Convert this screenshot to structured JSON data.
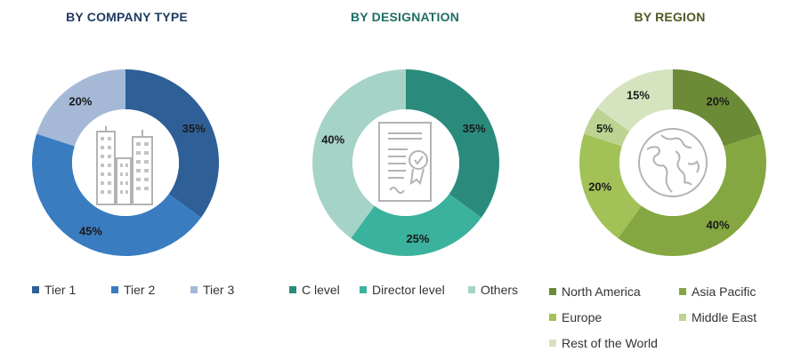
{
  "colors": {
    "company_title": "#1f3b63",
    "designation_title": "#1f6e66",
    "region_title": "#4d5a22"
  },
  "chart_data": [
    {
      "type": "pie",
      "title": "BY COMPANY TYPE",
      "center_icon": "buildings-icon",
      "categories": [
        "Tier 1",
        "Tier 2",
        "Tier 3"
      ],
      "values": [
        35,
        45,
        20
      ],
      "value_labels": [
        "35%",
        "45%",
        "20%"
      ],
      "colors": [
        "#2e5f97",
        "#3a7cc0",
        "#a5b9d7"
      ],
      "legend_position": "bottom"
    },
    {
      "type": "pie",
      "title": "BY DESIGNATION",
      "center_icon": "certificate-icon",
      "categories": [
        "C level",
        "Director level",
        "Others"
      ],
      "values": [
        35,
        25,
        40
      ],
      "value_labels": [
        "35%",
        "25%",
        "40%"
      ],
      "colors": [
        "#2a8b7c",
        "#3bb29d",
        "#a6d3c8"
      ],
      "legend_position": "bottom"
    },
    {
      "type": "pie",
      "title": "BY REGION",
      "center_icon": "globe-icon",
      "categories": [
        "North America",
        "Asia Pacific",
        "Europe",
        "Middle East",
        "Rest of the World"
      ],
      "values": [
        20,
        40,
        20,
        5,
        15
      ],
      "value_labels": [
        "20%",
        "40%",
        "20%",
        "5%",
        "15%"
      ],
      "colors": [
        "#6b8b37",
        "#84a741",
        "#a2c257",
        "#bcd391",
        "#d6e3bf"
      ],
      "legend_position": "bottom"
    }
  ]
}
